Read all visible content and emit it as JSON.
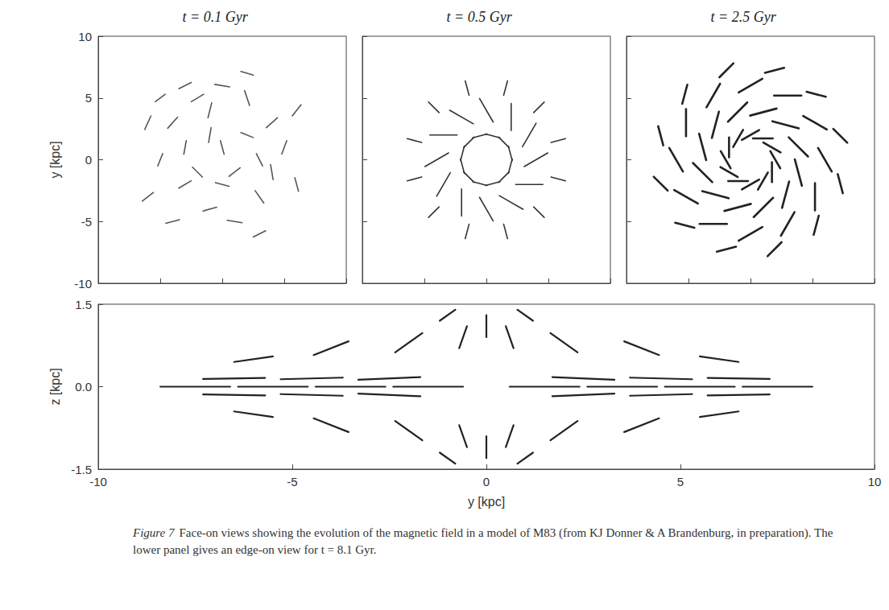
{
  "caption": {
    "label": "Figure 7",
    "text": "Face-on views showing the evolution of the magnetic field in a model of M83 (from KJ Donner & A Brandenburg, in preparation). The lower panel gives an edge-on view for t = 8.1 Gyr."
  },
  "chart_data": [
    {
      "type": "vector",
      "title": "t = 0.1 Gyr",
      "ylabel": "y [kpc]",
      "xlim": [
        -10,
        10
      ],
      "ylim": [
        -10,
        10
      ],
      "xticks": [
        -10,
        -5,
        0,
        5,
        10
      ],
      "yticks": [
        -10,
        -5,
        0,
        5,
        10
      ],
      "tick_labels": "y",
      "color": "#555555",
      "vectors": [
        [
          -4,
          3,
          0.8,
          0.9
        ],
        [
          -2,
          5,
          1,
          0.6
        ],
        [
          0,
          6,
          1.2,
          -0.2
        ],
        [
          -1,
          4,
          0.3,
          1.2
        ],
        [
          2,
          5,
          -0.4,
          1.2
        ],
        [
          -3,
          1,
          0.2,
          1.1
        ],
        [
          -5,
          0,
          0.4,
          1
        ],
        [
          -3,
          -2,
          1,
          0.6
        ],
        [
          -1,
          -4,
          1.1,
          0.3
        ],
        [
          1,
          -5,
          1.2,
          -0.2
        ],
        [
          3,
          -3,
          0.7,
          -1
        ],
        [
          4,
          -1,
          0.2,
          -1.2
        ],
        [
          5,
          1,
          -0.4,
          -1.1
        ],
        [
          4,
          3,
          -0.9,
          -0.8
        ],
        [
          2,
          2,
          -1,
          0.4
        ],
        [
          0,
          1,
          -0.3,
          1.1
        ],
        [
          1,
          -1,
          0.9,
          0.7
        ],
        [
          -2,
          -1,
          0.8,
          -0.8
        ],
        [
          -6,
          3,
          0.5,
          1.1
        ],
        [
          -6,
          -3,
          0.9,
          0.7
        ],
        [
          -4,
          -5,
          1.1,
          0.3
        ],
        [
          3,
          -6,
          1,
          0.5
        ],
        [
          6,
          -2,
          0.3,
          -1.1
        ],
        [
          6,
          4,
          -0.7,
          -0.9
        ],
        [
          2,
          7,
          -1,
          0.3
        ],
        [
          -3,
          6,
          1,
          0.5
        ],
        [
          -1,
          2,
          0.2,
          1.2
        ],
        [
          3,
          0,
          -0.5,
          1
        ],
        [
          0,
          -2,
          1.1,
          -0.3
        ],
        [
          -5,
          5,
          0.8,
          0.6
        ]
      ]
    },
    {
      "type": "vector",
      "title": "t = 0.5 Gyr",
      "xlim": [
        -10,
        10
      ],
      "ylim": [
        -10,
        10
      ],
      "xticks": [
        -10,
        -5,
        0,
        5,
        10
      ],
      "yticks": [
        -10,
        -5,
        0,
        5,
        10
      ],
      "tick_labels": false,
      "color": "#333333",
      "vectors": [
        [
          4,
          0,
          1.91,
          1.1
        ],
        [
          3.46,
          2,
          1.1,
          1.91
        ],
        [
          2,
          3.46,
          0,
          2.2
        ],
        [
          0,
          4,
          -1.1,
          1.91
        ],
        [
          -2,
          3.46,
          -1.91,
          1.1
        ],
        [
          -3.46,
          2,
          -2.2,
          0
        ],
        [
          -4,
          0,
          -1.91,
          -1.1
        ],
        [
          -3.46,
          -2,
          -1.1,
          -1.91
        ],
        [
          -2,
          -3.46,
          0,
          -2.2
        ],
        [
          0,
          -4,
          1.1,
          -1.91
        ],
        [
          2,
          -3.46,
          1.91,
          -1.1
        ],
        [
          3.46,
          -2,
          2.2,
          0
        ],
        [
          1.93,
          0.52,
          -0.31,
          1.16
        ],
        [
          1.41,
          1.41,
          -0.85,
          0.85
        ],
        [
          0.52,
          1.93,
          -1.16,
          0.31
        ],
        [
          -0.52,
          1.93,
          -1.16,
          -0.31
        ],
        [
          -1.41,
          1.41,
          -0.85,
          -0.85
        ],
        [
          -1.93,
          0.52,
          -0.31,
          -1.16
        ],
        [
          -1.93,
          -0.52,
          0.31,
          -1.16
        ],
        [
          -1.41,
          -1.41,
          0.85,
          -0.85
        ],
        [
          -0.52,
          -1.93,
          1.16,
          -0.31
        ],
        [
          0.52,
          -1.93,
          1.16,
          0.31
        ],
        [
          1.41,
          -1.41,
          0.85,
          0.85
        ],
        [
          1.93,
          -0.52,
          0.31,
          1.16
        ],
        [
          5.8,
          1.55,
          1.16,
          0.31
        ],
        [
          4.24,
          4.24,
          0.85,
          0.85
        ],
        [
          1.55,
          5.8,
          0.31,
          1.16
        ],
        [
          -1.55,
          5.8,
          -0.31,
          1.16
        ],
        [
          -4.24,
          4.24,
          -0.85,
          0.85
        ],
        [
          -5.8,
          1.55,
          -1.16,
          0.31
        ],
        [
          -5.8,
          -1.55,
          -1.16,
          -0.31
        ],
        [
          -4.24,
          -4.24,
          -0.85,
          -0.85
        ],
        [
          -1.55,
          -5.8,
          -0.31,
          -1.16
        ],
        [
          1.55,
          -5.8,
          0.31,
          -1.16
        ],
        [
          4.24,
          -4.24,
          0.85,
          -0.85
        ],
        [
          5.8,
          -1.55,
          1.16,
          -0.31
        ]
      ]
    },
    {
      "type": "vector",
      "title": "t = 2.5 Gyr",
      "xlim": [
        -10,
        10
      ],
      "ylim": [
        -10,
        10
      ],
      "xticks": [
        -10,
        -5,
        0,
        5,
        10
      ],
      "yticks": [
        -10,
        -5,
        0,
        5,
        10
      ],
      "tick_labels": false,
      "color": "#222222",
      "vectors": [
        [
          2,
          0,
          -0.8,
          1.39
        ],
        [
          1.73,
          1,
          -1.39,
          0.8
        ],
        [
          1,
          1.73,
          -1.6,
          0
        ],
        [
          0,
          2,
          -1.39,
          -0.8
        ],
        [
          -1,
          1.73,
          -0.8,
          -1.39
        ],
        [
          -1.73,
          1,
          0,
          -1.6
        ],
        [
          -2,
          0,
          0.8,
          -1.39
        ],
        [
          -1.73,
          -1,
          1.39,
          -0.8
        ],
        [
          -1,
          -1.73,
          1.6,
          0
        ],
        [
          0,
          -2,
          1.39,
          0.8
        ],
        [
          1,
          -1.73,
          0.8,
          1.39
        ],
        [
          1.73,
          -1,
          0,
          1.6
        ],
        [
          3.86,
          1.04,
          -1.56,
          1.56
        ],
        [
          2.83,
          2.83,
          -2.13,
          0.57
        ],
        [
          1.04,
          3.86,
          -2.13,
          -0.57
        ],
        [
          -1.04,
          3.86,
          -1.56,
          -1.56
        ],
        [
          -2.83,
          2.83,
          -0.57,
          -2.13
        ],
        [
          -3.86,
          1.04,
          0.57,
          -2.13
        ],
        [
          -3.86,
          -1.04,
          1.56,
          -1.56
        ],
        [
          -2.83,
          -2.83,
          2.13,
          -0.57
        ],
        [
          -1.04,
          -3.86,
          2.13,
          0.57
        ],
        [
          1.04,
          -3.86,
          1.56,
          1.56
        ],
        [
          2.83,
          -2.83,
          0.57,
          2.13
        ],
        [
          3.86,
          -1.04,
          -0.57,
          2.13
        ],
        [
          6,
          0,
          -1.1,
          1.91
        ],
        [
          5.2,
          3,
          -1.91,
          1.1
        ],
        [
          3,
          5.2,
          -2.2,
          0
        ],
        [
          0,
          6,
          -1.91,
          -1.1
        ],
        [
          -3,
          5.2,
          -1.1,
          -1.91
        ],
        [
          -5.2,
          3,
          0,
          -2.2
        ],
        [
          -6,
          0,
          1.1,
          -1.91
        ],
        [
          -5.2,
          -3,
          1.91,
          -1.1
        ],
        [
          -3,
          -5.2,
          2.2,
          0
        ],
        [
          0,
          -6,
          1.91,
          1.1
        ],
        [
          3,
          -5.2,
          1.1,
          1.91
        ],
        [
          5.2,
          -3,
          0,
          2.2
        ],
        [
          7.24,
          1.94,
          -1.13,
          1.13
        ],
        [
          5.3,
          5.3,
          -1.55,
          0.41
        ],
        [
          1.94,
          7.24,
          -1.55,
          -0.41
        ],
        [
          -1.94,
          7.24,
          -1.13,
          -1.13
        ],
        [
          -5.3,
          5.3,
          -0.41,
          -1.55
        ],
        [
          -7.24,
          1.94,
          0.41,
          -1.55
        ],
        [
          -7.24,
          -1.94,
          1.13,
          -1.13
        ],
        [
          -5.3,
          -5.3,
          1.55,
          -0.41
        ],
        [
          -1.94,
          -7.24,
          1.55,
          0.41
        ],
        [
          1.94,
          -7.24,
          1.13,
          1.13
        ],
        [
          5.3,
          -5.3,
          0.41,
          1.55
        ],
        [
          7.24,
          -1.94,
          -0.41,
          1.55
        ]
      ]
    },
    {
      "type": "vector",
      "xlabel": "y [kpc]",
      "ylabel": "z [kpc]",
      "xlim": [
        -10,
        10
      ],
      "ylim": [
        -1.5,
        1.5
      ],
      "xticks": [
        -10,
        -5,
        0,
        5,
        10
      ],
      "yticks": [
        -1.5,
        {
          "value": 0,
          "label": "0.0"
        },
        1.5
      ],
      "color": "#222222",
      "vectors": [
        [
          -7.5,
          0,
          1.8,
          0
        ],
        [
          -5.5,
          0,
          1.8,
          0
        ],
        [
          -3.5,
          0,
          1.8,
          0
        ],
        [
          -1.5,
          0,
          1.8,
          0
        ],
        [
          1.5,
          0,
          1.8,
          0
        ],
        [
          3.5,
          0,
          1.8,
          0
        ],
        [
          5.5,
          0,
          1.8,
          0
        ],
        [
          7.5,
          0,
          1.8,
          0
        ],
        [
          -6.5,
          0.15,
          1.6,
          0.02
        ],
        [
          -4.5,
          0.15,
          1.6,
          0.03
        ],
        [
          -2.5,
          0.15,
          1.6,
          0.05
        ],
        [
          2.5,
          0.15,
          1.6,
          -0.05
        ],
        [
          4.5,
          0.15,
          1.6,
          -0.03
        ],
        [
          6.5,
          0.15,
          1.6,
          -0.02
        ],
        [
          -6.5,
          -0.15,
          1.6,
          -0.02
        ],
        [
          -4.5,
          -0.15,
          1.6,
          -0.03
        ],
        [
          -2.5,
          -0.15,
          1.6,
          -0.05
        ],
        [
          2.5,
          -0.15,
          1.6,
          0.05
        ],
        [
          4.5,
          -0.15,
          1.6,
          0.03
        ],
        [
          6.5,
          -0.15,
          1.6,
          0.02
        ],
        [
          -4,
          0.7,
          0.9,
          0.25
        ],
        [
          -2,
          0.8,
          0.7,
          0.35
        ],
        [
          -0.6,
          0.9,
          0.2,
          0.4
        ],
        [
          0,
          1.1,
          0,
          0.4
        ],
        [
          0.6,
          0.9,
          -0.2,
          0.4
        ],
        [
          2,
          0.8,
          -0.7,
          0.35
        ],
        [
          4,
          0.7,
          -0.9,
          0.25
        ],
        [
          -6,
          0.5,
          1,
          0.1
        ],
        [
          6,
          0.5,
          -1,
          0.1
        ],
        [
          -4,
          -0.7,
          0.9,
          -0.25
        ],
        [
          -2,
          -0.8,
          0.7,
          -0.35
        ],
        [
          -0.6,
          -0.9,
          0.2,
          -0.4
        ],
        [
          0,
          -1.1,
          0,
          -0.4
        ],
        [
          0.6,
          -0.9,
          -0.2,
          -0.4
        ],
        [
          2,
          -0.8,
          -0.7,
          -0.35
        ],
        [
          4,
          -0.7,
          -0.9,
          -0.25
        ],
        [
          -6,
          -0.5,
          1,
          -0.1
        ],
        [
          6,
          -0.5,
          -1,
          -0.1
        ],
        [
          -1,
          1.3,
          0.4,
          0.2
        ],
        [
          1,
          1.3,
          -0.4,
          0.2
        ],
        [
          -1,
          -1.3,
          0.4,
          -0.2
        ],
        [
          1,
          -1.3,
          -0.4,
          -0.2
        ]
      ]
    }
  ]
}
